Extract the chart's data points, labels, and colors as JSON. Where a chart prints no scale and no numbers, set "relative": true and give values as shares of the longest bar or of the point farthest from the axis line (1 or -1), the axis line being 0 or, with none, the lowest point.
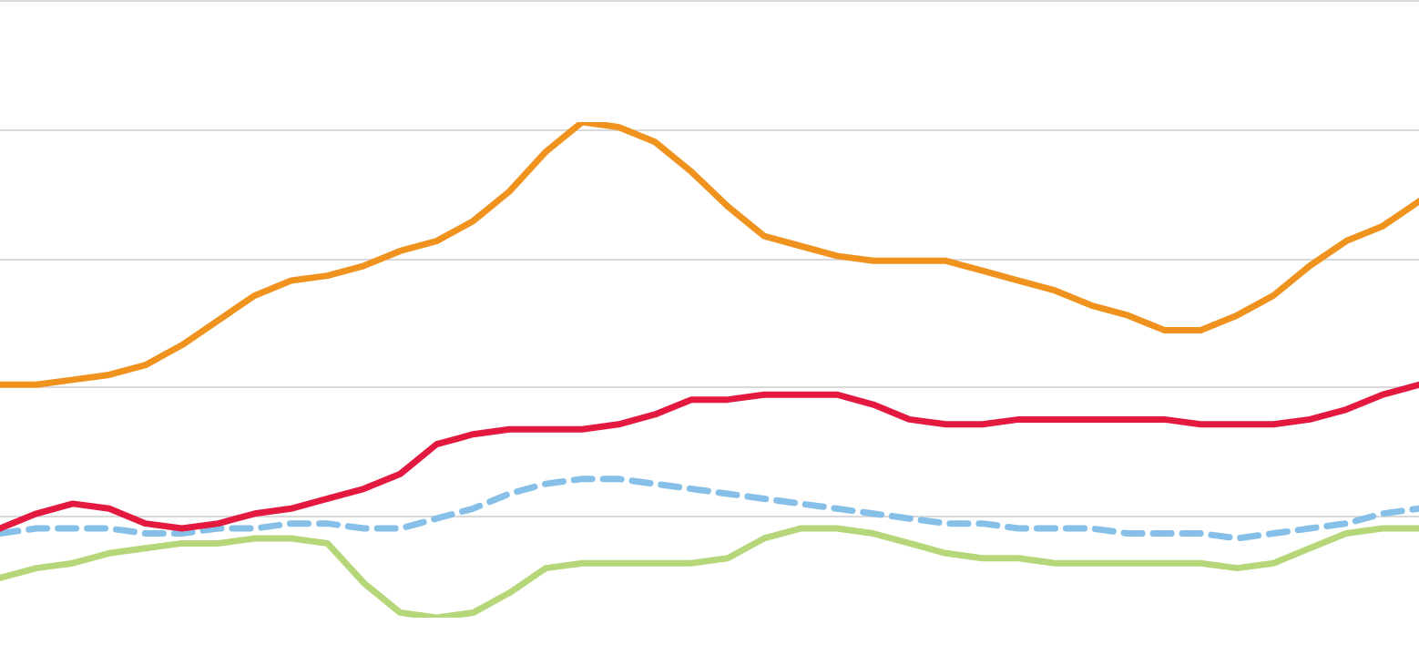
{
  "chart_data": {
    "type": "line",
    "relative": true,
    "grid": "y",
    "marker": "none",
    "categories": [
      null,
      null,
      null,
      null,
      null,
      null,
      null,
      null,
      null,
      null,
      null,
      null,
      null,
      null,
      null,
      null,
      null,
      null,
      null,
      null,
      null,
      null,
      null,
      null,
      null,
      null,
      null,
      null,
      null,
      null,
      null,
      null,
      null,
      null,
      null,
      null,
      null,
      null,
      null,
      null
    ],
    "series": [
      {
        "color": "#f0921e",
        "line_style": "solid",
        "values": [
          0.47,
          0.47,
          0.48,
          0.49,
          0.51,
          0.55,
          0.6,
          0.65,
          0.68,
          0.69,
          0.71,
          0.74,
          0.76,
          0.8,
          0.86,
          0.94,
          1.0,
          0.99,
          0.96,
          0.9,
          0.83,
          0.77,
          0.75,
          0.73,
          0.72,
          0.72,
          0.72,
          0.7,
          0.68,
          0.66,
          0.63,
          0.61,
          0.58,
          0.58,
          0.61,
          0.65,
          0.71,
          0.76,
          0.79,
          0.84
        ]
      },
      {
        "color": "#e4193f",
        "line_style": "solid",
        "values": [
          0.18,
          0.21,
          0.23,
          0.22,
          0.19,
          0.18,
          0.19,
          0.21,
          0.22,
          0.24,
          0.26,
          0.29,
          0.35,
          0.37,
          0.38,
          0.38,
          0.38,
          0.39,
          0.41,
          0.44,
          0.44,
          0.45,
          0.45,
          0.45,
          0.43,
          0.4,
          0.39,
          0.39,
          0.4,
          0.4,
          0.4,
          0.4,
          0.4,
          0.39,
          0.39,
          0.39,
          0.4,
          0.42,
          0.45,
          0.47
        ]
      },
      {
        "color": "#86c0e8",
        "line_style": "dashed",
        "values": [
          0.17,
          0.18,
          0.18,
          0.18,
          0.17,
          0.17,
          0.18,
          0.18,
          0.19,
          0.19,
          0.18,
          0.18,
          0.2,
          0.22,
          0.25,
          0.27,
          0.28,
          0.28,
          0.27,
          0.26,
          0.25,
          0.24,
          0.23,
          0.22,
          0.21,
          0.2,
          0.19,
          0.19,
          0.18,
          0.18,
          0.18,
          0.17,
          0.17,
          0.17,
          0.16,
          0.17,
          0.18,
          0.19,
          0.21,
          0.22
        ]
      },
      {
        "color": "#b5d77a",
        "line_style": "solid",
        "values": [
          0.08,
          0.1,
          0.11,
          0.13,
          0.14,
          0.15,
          0.15,
          0.16,
          0.16,
          0.15,
          0.07,
          0.01,
          0,
          0.01,
          0.05,
          0.1,
          0.11,
          0.11,
          0.11,
          0.11,
          0.12,
          0.16,
          0.18,
          0.18,
          0.17,
          0.15,
          0.13,
          0.12,
          0.12,
          0.11,
          0.11,
          0.11,
          0.11,
          0.11,
          0.1,
          0.11,
          0.14,
          0.17,
          0.18,
          0.18
        ]
      }
    ]
  }
}
